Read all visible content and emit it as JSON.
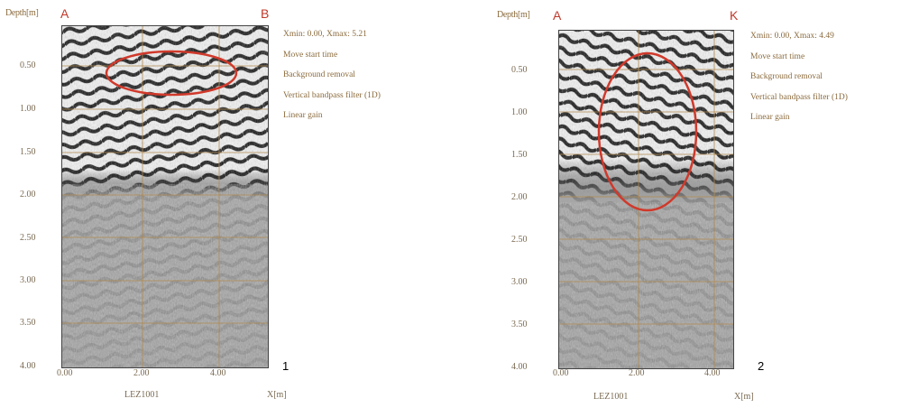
{
  "panels": [
    {
      "depth_label": "Depth[m]",
      "left_marker": "A",
      "right_marker": "B",
      "y_ticks": [
        "0.50",
        "1.00",
        "1.50",
        "2.00",
        "2.50",
        "3.00",
        "3.50",
        "4.00"
      ],
      "x_ticks": [
        "0.00",
        "2.00",
        "4.00"
      ],
      "file_label": "LEZ1001",
      "x_axis_label": "X[m]",
      "processing": [
        "Xmin: 0.00, Xmax: 5.21",
        "Move start time",
        "Background removal",
        "Vertical bandpass filter (1D)",
        "Linear gain"
      ],
      "number": "1"
    },
    {
      "depth_label": "Depth[m]",
      "left_marker": "A",
      "right_marker": "K",
      "y_ticks": [
        "0.50",
        "1.00",
        "1.50",
        "2.00",
        "2.50",
        "3.00",
        "3.50",
        "4.00"
      ],
      "x_ticks": [
        "0.00",
        "2.00",
        "4.00"
      ],
      "file_label": "LEZ1001",
      "x_axis_label": "X[m]",
      "processing": [
        "Xmin: 0.00, Xmax: 4.49",
        "Move start time",
        "Background removal",
        "Vertical bandpass filter (1D)",
        "Linear gain"
      ],
      "number": "2"
    }
  ],
  "colors": {
    "annotation_red": "#d0392b",
    "grid": "#b08a50",
    "label_brown": "#8b6b3d"
  }
}
